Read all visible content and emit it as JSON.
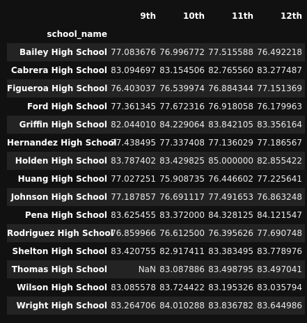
{
  "table": {
    "index_name": "school_name",
    "columns": [
      "9th",
      "10th",
      "11th",
      "12th"
    ],
    "rows": [
      {
        "school_name": "Bailey High School",
        "values": [
          "77.083676",
          "76.996772",
          "77.515588",
          "76.492218"
        ]
      },
      {
        "school_name": "Cabrera High School",
        "values": [
          "83.094697",
          "83.154506",
          "82.765560",
          "83.277487"
        ]
      },
      {
        "school_name": "Figueroa High School",
        "values": [
          "76.403037",
          "76.539974",
          "76.884344",
          "77.151369"
        ]
      },
      {
        "school_name": "Ford High School",
        "values": [
          "77.361345",
          "77.672316",
          "76.918058",
          "76.179963"
        ]
      },
      {
        "school_name": "Griffin High School",
        "values": [
          "82.044010",
          "84.229064",
          "83.842105",
          "83.356164"
        ]
      },
      {
        "school_name": "Hernandez High School",
        "values": [
          "77.438495",
          "77.337408",
          "77.136029",
          "77.186567"
        ]
      },
      {
        "school_name": "Holden High School",
        "values": [
          "83.787402",
          "83.429825",
          "85.000000",
          "82.855422"
        ]
      },
      {
        "school_name": "Huang High School",
        "values": [
          "77.027251",
          "75.908735",
          "76.446602",
          "77.225641"
        ]
      },
      {
        "school_name": "Johnson High School",
        "values": [
          "77.187857",
          "76.691117",
          "77.491653",
          "76.863248"
        ]
      },
      {
        "school_name": "Pena High School",
        "values": [
          "83.625455",
          "83.372000",
          "84.328125",
          "84.121547"
        ]
      },
      {
        "school_name": "Rodriguez High School",
        "values": [
          "76.859966",
          "76.612500",
          "76.395626",
          "77.690748"
        ]
      },
      {
        "school_name": "Shelton High School",
        "values": [
          "83.420755",
          "82.917411",
          "83.383495",
          "83.778976"
        ]
      },
      {
        "school_name": "Thomas High School",
        "values": [
          "NaN",
          "83.087886",
          "83.498795",
          "83.497041"
        ]
      },
      {
        "school_name": "Wilson High School",
        "values": [
          "83.085578",
          "83.724422",
          "83.195326",
          "83.035794"
        ]
      },
      {
        "school_name": "Wright High School",
        "values": [
          "83.264706",
          "84.010288",
          "83.836782",
          "83.644986"
        ]
      }
    ]
  },
  "colors": {
    "background": "#111111",
    "row_stripe": "#232323",
    "text": "#e8e8e8",
    "header_text": "#ffffff"
  }
}
